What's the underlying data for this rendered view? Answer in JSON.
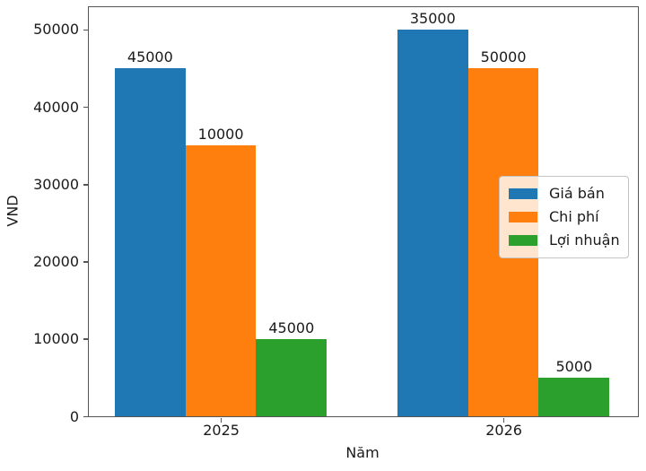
{
  "chart_data": {
    "type": "bar",
    "categories": [
      "2025",
      "2026"
    ],
    "series": [
      {
        "name": "Giá bán",
        "color": "#1f77b4",
        "values": [
          45000,
          50000
        ]
      },
      {
        "name": "Chi phí",
        "color": "#ff7f0e",
        "values": [
          35000,
          45000
        ]
      },
      {
        "name": "Lợi nhuận",
        "color": "#2ca02c",
        "values": [
          10000,
          5000
        ]
      }
    ],
    "bar_value_labels": [
      "45000",
      "35000",
      "10000",
      "50000",
      "45000",
      "5000"
    ],
    "xlabel": "Năm",
    "ylabel": "VND",
    "yticks": [
      0,
      10000,
      20000,
      30000,
      40000,
      50000
    ],
    "ytick_labels": [
      "0",
      "10000",
      "20000",
      "30000",
      "40000",
      "50000"
    ],
    "ylim": [
      0,
      52900
    ],
    "xlim": [
      -0.467,
      1.476
    ],
    "bar_width": 0.25,
    "grid": false,
    "legend": {
      "entries": [
        "Giá bán",
        "Chi phí",
        "Lợi nhuận"
      ],
      "position": "center-right-inside"
    },
    "colors": {
      "background": "#ffffff",
      "spine": "#555555",
      "text": "#1a1a1a"
    }
  }
}
